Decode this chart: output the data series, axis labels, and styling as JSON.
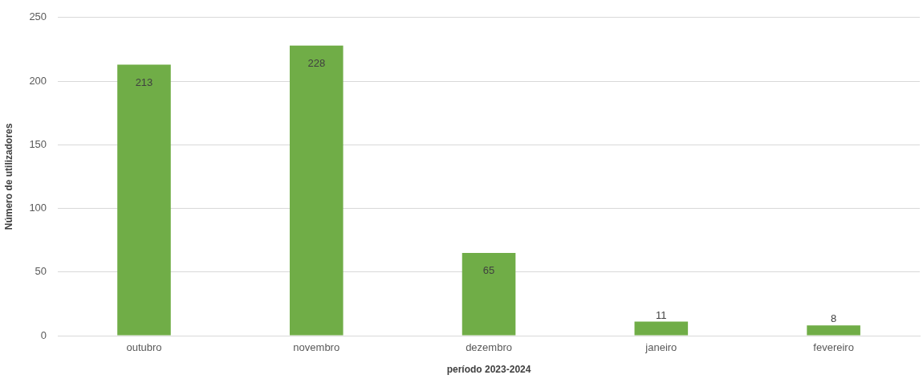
{
  "chart_data": {
    "type": "bar",
    "xlabel": "período 2023-2024",
    "ylabel": "Número de utilizadores",
    "categories": [
      "outubro",
      "novembro",
      "dezembro",
      "janeiro",
      "fevereiro"
    ],
    "values": [
      213,
      228,
      65,
      11,
      8
    ],
    "color": "#70ad47",
    "ylim": [
      0,
      250
    ],
    "yticks": [
      0,
      50,
      100,
      150,
      200,
      250
    ],
    "grid": "y",
    "data_labels": true,
    "legend": false
  }
}
